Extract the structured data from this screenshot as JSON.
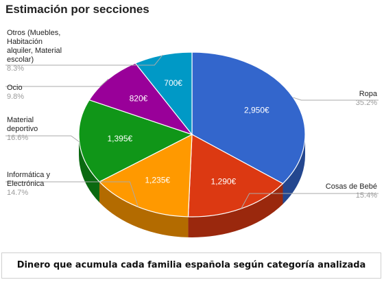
{
  "title": "Estimación por secciones",
  "caption": "Dinero que acumula cada familia española según categoría analizada",
  "chart_data": {
    "type": "pie",
    "title": "Estimación por secciones",
    "three_d": true,
    "slices": [
      {
        "label": "Ropa",
        "value": 2950,
        "value_label": "2,950€",
        "percent": "35.2%",
        "color": "#3366cc",
        "side_color": "#24478f"
      },
      {
        "label": "Cosas de Bebé",
        "value": 1290,
        "value_label": "1,290€",
        "percent": "15.4%",
        "color": "#dc3912",
        "side_color": "#9a280d"
      },
      {
        "label": "Informática y Electrónica",
        "value": 1235,
        "value_label": "1,235€",
        "percent": "14.7%",
        "color": "#ff9900",
        "side_color": "#b36b00"
      },
      {
        "label": "Material deportivo",
        "value": 1395,
        "value_label": "1,395€",
        "percent": "16.6%",
        "color": "#109618",
        "side_color": "#0b6911"
      },
      {
        "label": "Ocio",
        "value": 820,
        "value_label": "820€",
        "percent": "9.8%",
        "color": "#990099",
        "side_color": "#6b006b"
      },
      {
        "label": "Otros (Muebles, Habitación alquiler, Material escolar)",
        "value": 700,
        "value_label": "700€",
        "percent": "8.3%",
        "color": "#0099c6",
        "side_color": "#006b8b"
      }
    ],
    "legend_lines": {
      "ropa": "Ropa",
      "bebe": "Cosas de Bebé",
      "info_1": "Informática y",
      "info_2": "Electrónica",
      "deporte_1": "Material",
      "deporte_2": "deportivo",
      "ocio": "Ocio",
      "otros_1": "Otros (Muebles,",
      "otros_2": "Habitación",
      "otros_3": "alquiler, Material",
      "otros_4": "escolar)"
    }
  }
}
